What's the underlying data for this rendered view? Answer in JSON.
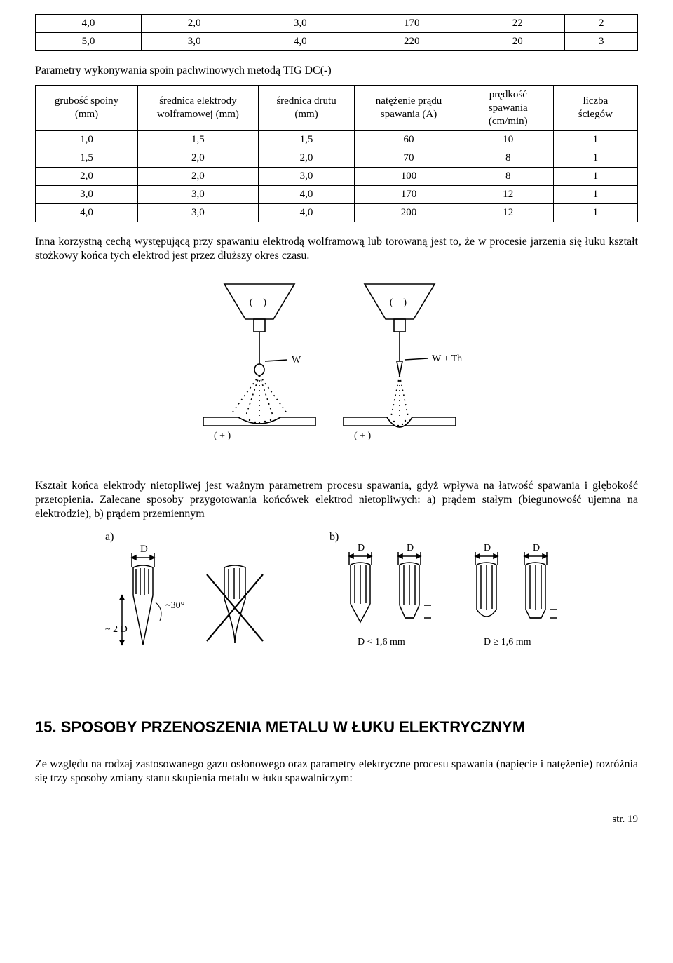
{
  "table1": {
    "rows": [
      [
        "4,0",
        "2,0",
        "3,0",
        "170",
        "22",
        "2"
      ],
      [
        "5,0",
        "3,0",
        "4,0",
        "220",
        "20",
        "3"
      ]
    ]
  },
  "leadText": "Parametry wykonywania spoin pachwinowych metodą TIG DC(-)",
  "table2": {
    "headers": [
      "grubość spoiny\n(mm)",
      "średnica elektrody\nwolframowej (mm)",
      "średnica drutu\n(mm)",
      "natężenie prądu\nspawania (A)",
      "prędkość\nspawania\n(cm/min)",
      "liczba\nściegów"
    ],
    "rows": [
      [
        "1,0",
        "1,5",
        "1,5",
        "60",
        "10",
        "1"
      ],
      [
        "1,5",
        "2,0",
        "2,0",
        "70",
        "8",
        "1"
      ],
      [
        "2,0",
        "2,0",
        "3,0",
        "100",
        "8",
        "1"
      ],
      [
        "3,0",
        "3,0",
        "4,0",
        "170",
        "12",
        "1"
      ],
      [
        "4,0",
        "3,0",
        "4,0",
        "200",
        "12",
        "1"
      ]
    ]
  },
  "para1": "Inna korzystną cechą występującą przy spawaniu elektrodą wolframową lub torowaną jest to, że w procesie jarzenia się łuku kształt stożkowy końca tych elektrod jest przez dłuższy okres czasu.",
  "diagram1": {
    "labels": {
      "leftPolarity": "( − )",
      "rightPolarity": "( − )",
      "W": "W",
      "WTh": "W + Th",
      "plusLeft": "( + )",
      "plusRight": "( + )"
    },
    "colors": {
      "stroke": "#000000",
      "bg": "#ffffff"
    }
  },
  "para2": "Kształt końca elektrody nietopliwej jest ważnym parametrem procesu spawania, gdyż wpływa na łatwość spawania i głębokość przetopienia. Zalecane sposoby przygotowania końcówek elektrod nietopliwych: a) prądem stałym (biegunowość ujemna na elektrodzie), b) prądem przemiennym",
  "abLabels": {
    "a": "a)",
    "b": "b)"
  },
  "diagram2": {
    "labels": {
      "D": "D",
      "angle": "~30°",
      "twoD": "~ 2 D",
      "lt": "D < 1,6 mm",
      "ge": "D ≥ 1,6 mm"
    },
    "colors": {
      "stroke": "#000000"
    }
  },
  "heading": "15. SPOSOBY PRZENOSZENIA METALU W ŁUKU ELEKTRYCZNYM",
  "para3": "Ze względu na rodzaj zastosowanego gazu osłonowego oraz parametry elektryczne procesu spawania (napięcie i natężenie) rozróżnia się trzy sposoby zmiany stanu skupienia metalu w łuku spawalniczym:",
  "pageNum": "str. 19"
}
